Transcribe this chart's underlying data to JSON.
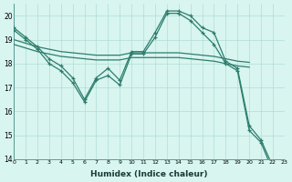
{
  "line_main": {
    "x": [
      0,
      1,
      2,
      3,
      4,
      5,
      6,
      7,
      8,
      9,
      10,
      11,
      12,
      13,
      14,
      15,
      16,
      17,
      18,
      19,
      20,
      21,
      22,
      23
    ],
    "y": [
      19.5,
      19.1,
      18.7,
      18.2,
      17.9,
      17.4,
      16.5,
      17.4,
      17.8,
      17.3,
      18.5,
      18.5,
      19.3,
      20.2,
      20.2,
      20.0,
      19.5,
      19.3,
      18.1,
      17.8,
      15.4,
      14.8,
      13.7,
      13.5
    ]
  },
  "line_flat1": {
    "x": [
      0,
      1,
      2,
      3,
      4,
      5,
      6,
      7,
      8,
      9,
      10,
      11,
      12,
      13,
      14,
      15,
      16,
      17,
      18,
      19,
      20
    ],
    "y": [
      19.0,
      18.85,
      18.7,
      18.6,
      18.5,
      18.45,
      18.4,
      18.35,
      18.35,
      18.35,
      18.45,
      18.45,
      18.45,
      18.45,
      18.45,
      18.4,
      18.35,
      18.3,
      18.2,
      18.1,
      18.05
    ]
  },
  "line_flat2": {
    "x": [
      0,
      1,
      2,
      3,
      4,
      5,
      6,
      7,
      8,
      9,
      10,
      11,
      12,
      13,
      14,
      15,
      16,
      17,
      18,
      19,
      20
    ],
    "y": [
      18.8,
      18.65,
      18.5,
      18.4,
      18.3,
      18.25,
      18.2,
      18.15,
      18.15,
      18.15,
      18.25,
      18.25,
      18.25,
      18.25,
      18.25,
      18.2,
      18.15,
      18.1,
      18.0,
      17.9,
      17.85
    ]
  },
  "line_low": {
    "x": [
      0,
      1,
      2,
      3,
      4,
      5,
      6,
      7,
      8,
      9,
      10,
      11,
      12,
      13,
      14,
      15,
      16,
      17,
      18,
      19,
      20,
      21,
      22,
      23
    ],
    "y": [
      19.4,
      19.0,
      18.6,
      18.0,
      17.7,
      17.2,
      16.4,
      17.3,
      17.5,
      17.1,
      18.4,
      18.4,
      19.1,
      20.1,
      20.1,
      19.8,
      19.3,
      18.8,
      18.0,
      17.7,
      15.2,
      14.7,
      13.5,
      13.4
    ]
  },
  "xlabel": "Humidex (Indice chaleur)",
  "xlim": [
    0,
    23
  ],
  "ylim": [
    14,
    20.5
  ],
  "yticks": [
    14,
    15,
    16,
    17,
    18,
    19,
    20
  ],
  "xticks": [
    0,
    1,
    2,
    3,
    4,
    5,
    6,
    7,
    8,
    9,
    10,
    11,
    12,
    13,
    14,
    15,
    16,
    17,
    18,
    19,
    20,
    21,
    22,
    23
  ],
  "bg_color": "#d8f5f0",
  "grid_color": "#b0ddd6",
  "line_color": "#2e7d6e"
}
